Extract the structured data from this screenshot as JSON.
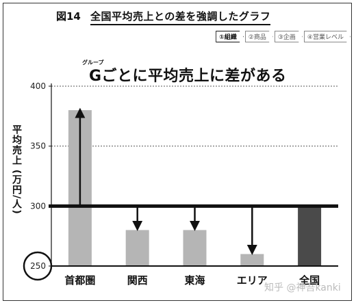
{
  "figure": {
    "number": "図14",
    "title": "全国平均売上との差を強調したグラフ",
    "breadcrumbs": [
      "①組織",
      "②商品",
      "③企画",
      "④営業レベル"
    ],
    "active_crumb": 0
  },
  "headline": {
    "ruby": "グループ",
    "text": "Gごとに平均売上に差がある"
  },
  "watermark": "知乎 @神吾kanki",
  "colors": {
    "bar": "#b5b5b5",
    "highlight_bar": "#4a4a4a",
    "baseline": "#111111"
  },
  "chart_data": {
    "type": "bar",
    "title": "Gごとに平均売上に差がある",
    "ylabel": "平均売上 (万円/人)",
    "xlabel": "",
    "categories": [
      "首都圏",
      "関西",
      "東海",
      "エリア",
      "全国"
    ],
    "values": [
      380,
      280,
      280,
      260,
      300
    ],
    "highlight_index": 4,
    "baseline": 300,
    "ylim": [
      250,
      400
    ],
    "yticks": [
      250,
      300,
      350,
      400
    ],
    "grid": "dotted",
    "legend": "none",
    "arrows_from_baseline": true,
    "circled_tick": 250
  }
}
